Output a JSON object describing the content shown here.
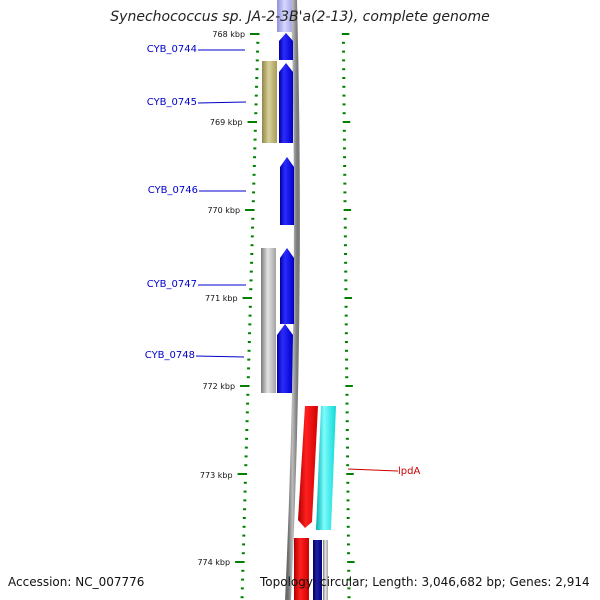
{
  "title": "Synechococcus sp. JA-2-3B'a(2-13), complete genome",
  "accession_text": "Accession: NC_007776",
  "topology_text": "Topology: circular; Length: 3,046,682 bp; Genes: 2,914",
  "colors": {
    "scale_ticks": "#008000",
    "gene_label": "#0000cc",
    "highlight_label": "#cc0000",
    "backbone": "#888888"
  },
  "scale_labels": [
    "768 kbp",
    "769 kbp",
    "770 kbp",
    "771 kbp",
    "772 kbp",
    "773 kbp",
    "774 kbp"
  ],
  "gene_labels": [
    {
      "text": "CYB_0744",
      "kind": "gene"
    },
    {
      "text": "CYB_0745",
      "kind": "gene"
    },
    {
      "text": "CYB_0746",
      "kind": "gene"
    },
    {
      "text": "CYB_0747",
      "kind": "gene"
    },
    {
      "text": "CYB_0748",
      "kind": "gene"
    },
    {
      "text": "lpdA",
      "kind": "highlight"
    }
  ]
}
